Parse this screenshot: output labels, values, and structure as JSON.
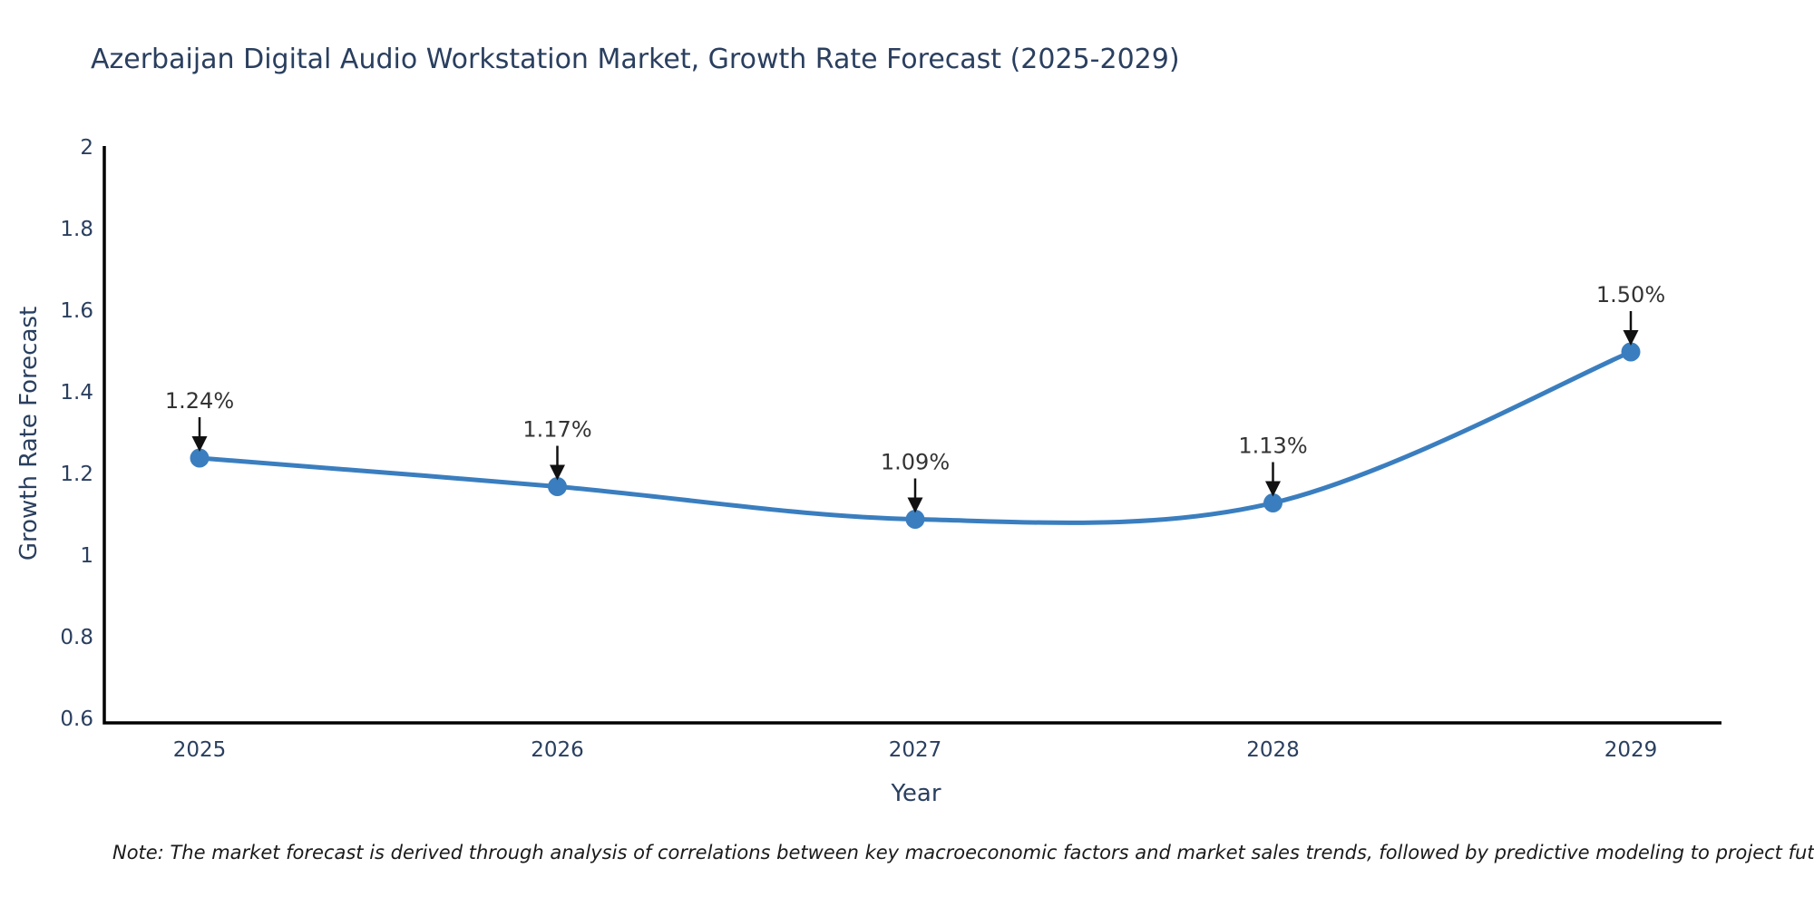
{
  "note": "Note: The market forecast is derived through analysis of correlations between key macroeconomic factors and market sales trends, followed by predictive modeling to project future sales",
  "chart_data": {
    "type": "line",
    "title": "Azerbaijan Digital Audio Workstation Market, Growth Rate Forecast (2025-2029)",
    "xlabel": "Year",
    "ylabel": "Growth Rate Forecast",
    "x": [
      2025,
      2026,
      2027,
      2028,
      2029
    ],
    "values": [
      1.24,
      1.17,
      1.09,
      1.13,
      1.5
    ],
    "point_labels": [
      "1.24%",
      "1.17%",
      "1.09%",
      "1.13%",
      "1.50%"
    ],
    "ylim": [
      0.6,
      2
    ],
    "yticks": [
      0.6,
      0.8,
      1,
      1.2,
      1.4,
      1.6,
      1.8,
      2
    ],
    "ytick_labels": [
      "0.6",
      "0.8",
      "1",
      "1.2",
      "1.4",
      "1.6",
      "1.8",
      "2"
    ],
    "grid": false,
    "legend": "none",
    "line_color": "#3a7ebf",
    "marker_color": "#3a7ebf",
    "axis_color": "#000000",
    "tick_label_color": "#2a3f5f",
    "annotation_text_color": "#333333",
    "annotation_arrow_color": "#111111"
  }
}
